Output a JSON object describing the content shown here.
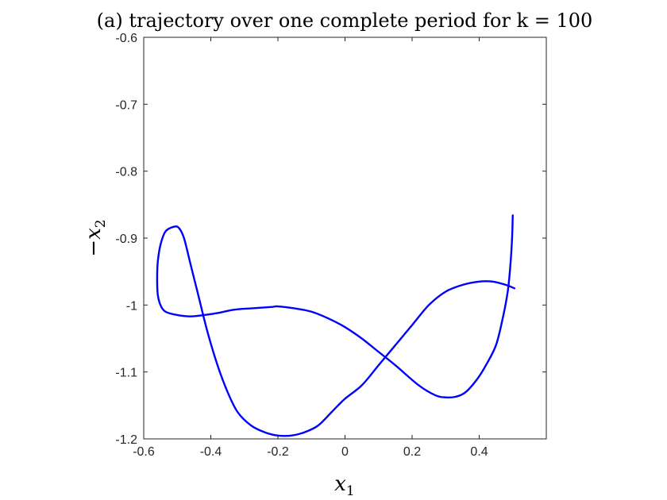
{
  "chart_data": {
    "type": "line",
    "title": "(a) trajectory over one complete period for k = 100",
    "xlabel": {
      "base": "x",
      "sub": "1"
    },
    "ylabel": {
      "base": "−x",
      "sub": "2"
    },
    "xlim": [
      -0.6,
      0.6
    ],
    "ylim": [
      -1.2,
      -0.6
    ],
    "xticks": [
      -0.6,
      -0.4,
      -0.2,
      0,
      0.2,
      0.4
    ],
    "xtick_labels": [
      "-0.6",
      "-0.4",
      "-0.2",
      "0",
      "0.2",
      "0.4"
    ],
    "yticks": [
      -1.2,
      -1.1,
      -1.0,
      -0.9,
      -0.8,
      -0.7,
      -0.6
    ],
    "ytick_labels": [
      "-1.2",
      "-1.1",
      "-1",
      "-0.9",
      "-0.8",
      "-0.7",
      "-0.6"
    ],
    "grid": false,
    "series": [
      {
        "color": "#0000ff",
        "x": [
          0.5,
          0.498,
          0.493,
          0.485,
          0.47,
          0.45,
          0.42,
          0.395,
          0.36,
          0.33,
          0.3,
          0.27,
          0.22,
          0.15,
          0.1,
          0.05,
          0.0,
          -0.05,
          -0.1,
          -0.15,
          -0.2,
          -0.22,
          -0.28,
          -0.33,
          -0.38,
          -0.42,
          -0.46,
          -0.5,
          -0.535,
          -0.55,
          -0.558,
          -0.56,
          -0.558,
          -0.55,
          -0.535,
          -0.51,
          -0.495,
          -0.48,
          -0.46,
          -0.44,
          -0.41,
          -0.38,
          -0.35,
          -0.32,
          -0.28,
          -0.24,
          -0.2,
          -0.16,
          -0.12,
          -0.08,
          -0.04,
          0.0,
          0.05,
          0.1,
          0.15,
          0.2,
          0.25,
          0.3,
          0.35,
          0.4,
          0.44,
          0.48,
          0.505
        ],
        "y": [
          -0.866,
          -0.9,
          -0.94,
          -0.98,
          -1.02,
          -1.06,
          -1.09,
          -1.11,
          -1.13,
          -1.137,
          -1.138,
          -1.135,
          -1.12,
          -1.09,
          -1.07,
          -1.05,
          -1.033,
          -1.02,
          -1.01,
          -1.005,
          -1.002,
          -1.003,
          -1.005,
          -1.007,
          -1.012,
          -1.015,
          -1.017,
          -1.015,
          -1.01,
          -1.0,
          -0.985,
          -0.96,
          -0.935,
          -0.91,
          -0.89,
          -0.883,
          -0.885,
          -0.9,
          -0.94,
          -0.98,
          -1.04,
          -1.09,
          -1.13,
          -1.16,
          -1.18,
          -1.19,
          -1.195,
          -1.195,
          -1.19,
          -1.18,
          -1.16,
          -1.14,
          -1.12,
          -1.09,
          -1.06,
          -1.03,
          -1.0,
          -0.98,
          -0.97,
          -0.965,
          -0.965,
          -0.97,
          -0.975
        ]
      }
    ]
  }
}
